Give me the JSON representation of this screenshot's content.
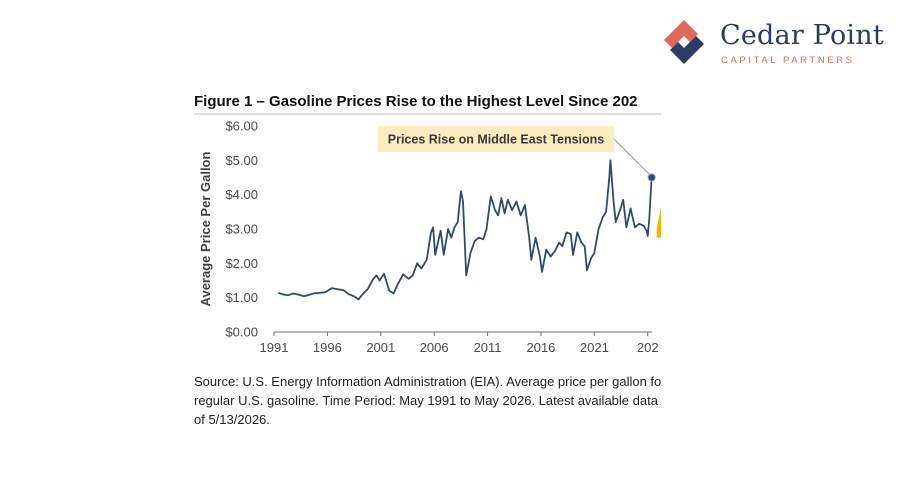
{
  "brand": {
    "name": "Cedar Point",
    "tagline": "CAPITAL PARTNERS",
    "logo_icon": "diamond-mark-icon",
    "colors": {
      "navy": "#2d3a66",
      "coral": "#e0685a"
    }
  },
  "chart_data": {
    "type": "line",
    "title": "Figure 1 – Gasoline Prices Rise to the Highest Level Since 202",
    "xlabel": "",
    "ylabel": "Average Price Per Gallon",
    "x_ticks": [
      "1991",
      "1996",
      "2001",
      "2006",
      "2011",
      "2016",
      "2021",
      "202"
    ],
    "y_ticks": [
      "$0.00",
      "$1.00",
      "$2.00",
      "$3.00",
      "$4.00",
      "$5.00",
      "$6.00"
    ],
    "xlim": [
      1991,
      2026.4
    ],
    "ylim": [
      0,
      6
    ],
    "grid": false,
    "line_color": "#2c4a72",
    "annotation": {
      "text": "Prices Rise on Middle East Tensions",
      "x": 2026.37,
      "y": 4.5,
      "box_color": "#fbecc0"
    },
    "series": [
      {
        "name": "",
        "points": [
          [
            1991.4,
            1.14
          ],
          [
            1991.8,
            1.1
          ],
          [
            1992.3,
            1.07
          ],
          [
            1992.8,
            1.12
          ],
          [
            1993.3,
            1.09
          ],
          [
            1993.8,
            1.04
          ],
          [
            1994.3,
            1.08
          ],
          [
            1994.8,
            1.13
          ],
          [
            1995.3,
            1.14
          ],
          [
            1995.8,
            1.16
          ],
          [
            1996.4,
            1.28
          ],
          [
            1996.9,
            1.25
          ],
          [
            1997.5,
            1.22
          ],
          [
            1998.0,
            1.1
          ],
          [
            1998.5,
            1.04
          ],
          [
            1998.9,
            0.95
          ],
          [
            1999.3,
            1.1
          ],
          [
            1999.8,
            1.26
          ],
          [
            2000.3,
            1.55
          ],
          [
            2000.6,
            1.65
          ],
          [
            2000.9,
            1.5
          ],
          [
            2001.3,
            1.7
          ],
          [
            2001.8,
            1.2
          ],
          [
            2002.2,
            1.12
          ],
          [
            2002.6,
            1.4
          ],
          [
            2003.1,
            1.68
          ],
          [
            2003.6,
            1.55
          ],
          [
            2004.0,
            1.65
          ],
          [
            2004.4,
            2.0
          ],
          [
            2004.8,
            1.85
          ],
          [
            2005.3,
            2.1
          ],
          [
            2005.7,
            2.9
          ],
          [
            2005.9,
            3.05
          ],
          [
            2006.1,
            2.25
          ],
          [
            2006.6,
            2.95
          ],
          [
            2006.9,
            2.25
          ],
          [
            2007.3,
            3.0
          ],
          [
            2007.6,
            2.75
          ],
          [
            2007.9,
            3.05
          ],
          [
            2008.2,
            3.2
          ],
          [
            2008.5,
            4.1
          ],
          [
            2008.7,
            3.8
          ],
          [
            2009.0,
            1.65
          ],
          [
            2009.4,
            2.3
          ],
          [
            2009.8,
            2.65
          ],
          [
            2010.2,
            2.75
          ],
          [
            2010.6,
            2.7
          ],
          [
            2010.9,
            3.0
          ],
          [
            2011.3,
            3.95
          ],
          [
            2011.7,
            3.55
          ],
          [
            2012.0,
            3.4
          ],
          [
            2012.3,
            3.9
          ],
          [
            2012.6,
            3.45
          ],
          [
            2012.9,
            3.85
          ],
          [
            2013.3,
            3.55
          ],
          [
            2013.7,
            3.8
          ],
          [
            2014.1,
            3.4
          ],
          [
            2014.5,
            3.7
          ],
          [
            2014.9,
            2.75
          ],
          [
            2015.1,
            2.1
          ],
          [
            2015.5,
            2.75
          ],
          [
            2015.9,
            2.2
          ],
          [
            2016.1,
            1.75
          ],
          [
            2016.5,
            2.4
          ],
          [
            2016.9,
            2.2
          ],
          [
            2017.3,
            2.35
          ],
          [
            2017.7,
            2.6
          ],
          [
            2018.0,
            2.5
          ],
          [
            2018.4,
            2.9
          ],
          [
            2018.8,
            2.85
          ],
          [
            2019.0,
            2.25
          ],
          [
            2019.4,
            2.9
          ],
          [
            2019.8,
            2.6
          ],
          [
            2020.1,
            2.5
          ],
          [
            2020.3,
            1.8
          ],
          [
            2020.7,
            2.15
          ],
          [
            2021.0,
            2.3
          ],
          [
            2021.4,
            3.0
          ],
          [
            2021.8,
            3.35
          ],
          [
            2022.1,
            3.5
          ],
          [
            2022.4,
            4.5
          ],
          [
            2022.5,
            5.0
          ],
          [
            2022.8,
            3.8
          ],
          [
            2023.0,
            3.2
          ],
          [
            2023.4,
            3.55
          ],
          [
            2023.7,
            3.85
          ],
          [
            2024.0,
            3.05
          ],
          [
            2024.4,
            3.6
          ],
          [
            2024.8,
            3.05
          ],
          [
            2025.2,
            3.15
          ],
          [
            2025.6,
            3.1
          ],
          [
            2025.9,
            2.95
          ],
          [
            2026.0,
            2.8
          ],
          [
            2026.15,
            3.3
          ],
          [
            2026.25,
            3.9
          ],
          [
            2026.37,
            4.5
          ]
        ]
      }
    ]
  },
  "source": {
    "lines": [
      "Source: U.S. Energy Information Administration (EIA). Average price per gallon fo",
      "regular U.S. gasoline. Time Period: May 1991 to May 2026. Latest available data as",
      "of 5/13/2026."
    ]
  }
}
